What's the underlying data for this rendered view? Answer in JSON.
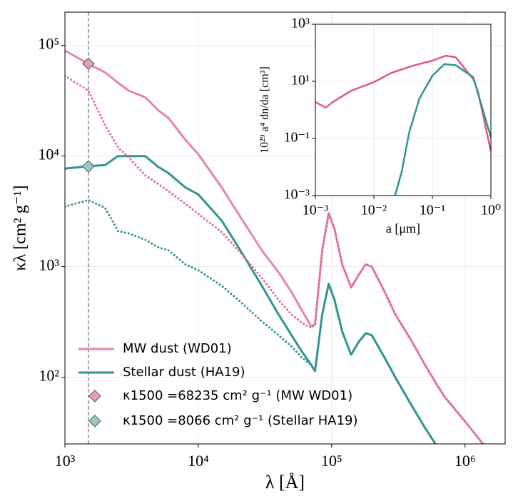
{
  "chart_data": [
    {
      "type": "line",
      "xlabel": "λ [Å]",
      "ylabel": "κλ [cm² g⁻¹]",
      "xscale": "log",
      "yscale": "log",
      "grid": true,
      "legend": "lower left",
      "xlim": [
        1000,
        2000000
      ],
      "ylim": [
        25,
        200000
      ],
      "xticks": [
        {
          "value": 1000,
          "label": "10³"
        },
        {
          "value": 10000,
          "label": "10⁴"
        },
        {
          "value": 100000,
          "label": "10⁵"
        },
        {
          "value": 1000000,
          "label": "10⁶"
        }
      ],
      "yticks": [
        {
          "value": 100,
          "label": "10²"
        },
        {
          "value": 1000,
          "label": "10³"
        },
        {
          "value": 10000,
          "label": "10⁴"
        },
        {
          "value": 100000,
          "label": "10⁵"
        }
      ],
      "vline": 1500,
      "x": [
        1000,
        1500,
        2000,
        2500,
        3000,
        4000,
        5000,
        6000,
        8000,
        10000,
        15000,
        20000,
        30000,
        40000,
        50000,
        60000,
        70000,
        75000,
        85000,
        95000,
        105000,
        120000,
        140000,
        160000,
        180000,
        200000,
        250000,
        300000,
        400000,
        500000,
        600000,
        700000,
        1000000,
        1400000
      ],
      "series": [
        {
          "name": "MW dust (WD01)",
          "color": "#e8879e",
          "style": "solid",
          "values": [
            90000,
            68000,
            57000,
            46000,
            39000,
            34000,
            26000,
            22000,
            14000,
            10400,
            5200,
            3000,
            1400,
            890,
            590,
            400,
            290,
            300,
            1400,
            3050,
            2200,
            1050,
            650,
            850,
            1050,
            1000,
            590,
            370,
            210,
            130,
            90,
            67,
            40,
            24
          ]
        },
        {
          "name": "Stellar dust (HA19)",
          "color": "#2e9690",
          "style": "solid",
          "values": [
            7700,
            8100,
            8300,
            10000,
            10000,
            10000,
            8000,
            7000,
            5200,
            4500,
            2600,
            1500,
            670,
            370,
            240,
            170,
            130,
            114,
            370,
            700,
            500,
            260,
            160,
            210,
            250,
            240,
            150,
            100,
            55,
            35,
            25,
            null,
            null,
            null
          ]
        },
        {
          "color": "#e0698a",
          "style": "dotted",
          "values": [
            53000,
            39000,
            19000,
            12000,
            9700,
            6700,
            5600,
            4800,
            3700,
            3000,
            2050,
            1400,
            790,
            500,
            370,
            310,
            280,
            300,
            1400,
            3050,
            2200,
            1050,
            650,
            850,
            1050,
            1000,
            590,
            370,
            210,
            130,
            90,
            67,
            40,
            24
          ]
        },
        {
          "color": "#2e9690",
          "style": "dotted",
          "values": [
            3500,
            4000,
            3400,
            2100,
            2000,
            1750,
            1500,
            1400,
            1050,
            930,
            670,
            500,
            320,
            240,
            190,
            150,
            130,
            114,
            370,
            700,
            500,
            260,
            160,
            210,
            250,
            240,
            150,
            100,
            55,
            35,
            25,
            null,
            null,
            null
          ]
        }
      ],
      "markers": [
        {
          "name": "κ1500 =68235 cm² g⁻¹ (MW WD01)",
          "x": 1500,
          "y": 68235,
          "color": "#e8a0b0"
        },
        {
          "name": "κ1500 =8066 cm² g⁻¹ (Stellar HA19)",
          "x": 1500,
          "y": 8066,
          "color": "#94cac8"
        }
      ]
    },
    {
      "type": "line",
      "xlabel": "a [μm]",
      "ylabel": "10²⁹ a⁴ dn/da [cm³]",
      "xscale": "log",
      "yscale": "log",
      "grid": true,
      "xlim": [
        0.001,
        1
      ],
      "ylim": [
        0.001,
        1000
      ],
      "xticks": [
        {
          "value": 0.001,
          "label": "10⁻³"
        },
        {
          "value": 0.01,
          "label": "10⁻²"
        },
        {
          "value": 0.1,
          "label": "10⁻¹"
        },
        {
          "value": 1,
          "label": "10⁰"
        }
      ],
      "yticks": [
        {
          "value": 0.001,
          "label": "10⁻³"
        },
        {
          "value": 0.1,
          "label": "10⁻¹"
        },
        {
          "value": 10,
          "label": "10¹"
        },
        {
          "value": 1000,
          "label": "10³"
        }
      ],
      "series": [
        {
          "color": "#e05a7a",
          "style": "solid",
          "x": [
            0.001,
            0.0015,
            0.002,
            0.004,
            0.01,
            0.02,
            0.05,
            0.1,
            0.17,
            0.25,
            0.5,
            0.6,
            1
          ],
          "values": [
            1.9,
            1.2,
            1.9,
            4.6,
            9.4,
            20,
            37,
            53,
            79,
            70,
            12,
            4.5,
            0.035
          ]
        },
        {
          "color": "#2e9690",
          "style": "solid",
          "x": [
            0.023,
            0.03,
            0.04,
            0.06,
            0.1,
            0.16,
            0.25,
            0.5,
            1
          ],
          "values": [
            0.001,
            0.007,
            0.16,
            2.5,
            15.8,
            40,
            37,
            14,
            0.11
          ]
        }
      ]
    }
  ]
}
